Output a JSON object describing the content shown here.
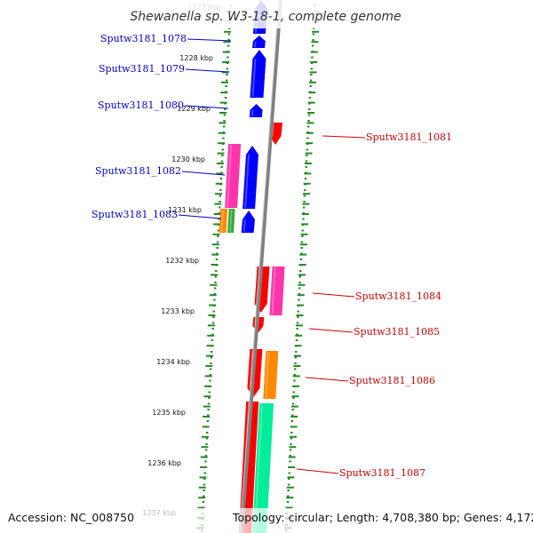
{
  "title": "Shewanella sp. W3-18-1, complete genome",
  "footer": {
    "accession": "Accession: NC_008750",
    "topology": "Topology: circular; Length: 4,708,380 bp; Genes: 4,172"
  },
  "colors": {
    "forward_label": "#0000cc",
    "reverse_label": "#cc0000",
    "tick": "#228b22",
    "backbone": "#808080"
  },
  "scale_labels": [
    "1227 kbp",
    "1228 kbp",
    "1229 kbp",
    "1230 kbp",
    "1231 kbp",
    "1232 kbp",
    "1233 kbp",
    "1234 kbp",
    "1235 kbp",
    "1236 kbp",
    "1237 kbp"
  ],
  "forward_genes": [
    {
      "label": "Sputw3181_1078"
    },
    {
      "label": "Sputw3181_1079"
    },
    {
      "label": "Sputw3181_1080"
    },
    {
      "label": "Sputw3181_1082"
    },
    {
      "label": "Sputw3181_1083"
    }
  ],
  "reverse_genes": [
    {
      "label": "Sputw3181_1081"
    },
    {
      "label": "Sputw3181_1084"
    },
    {
      "label": "Sputw3181_1085"
    },
    {
      "label": "Sputw3181_1086"
    },
    {
      "label": "Sputw3181_1087"
    }
  ]
}
